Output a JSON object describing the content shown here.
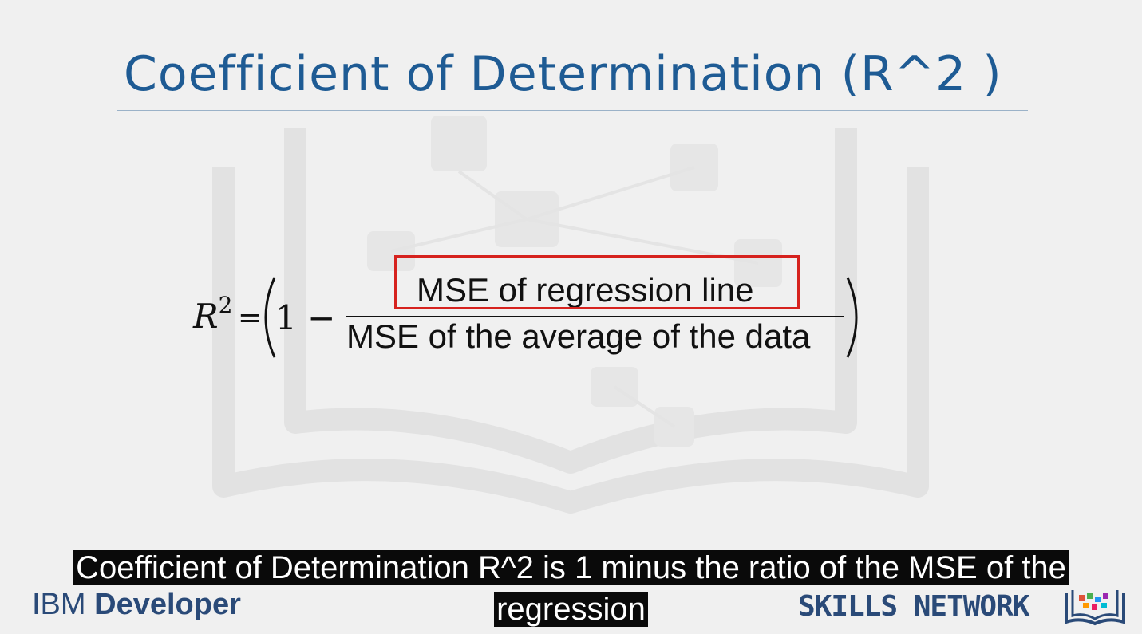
{
  "slide": {
    "title": "Coefficient of Determination (R^2 )",
    "formula": {
      "lhs_symbol": "R",
      "lhs_superscript": "2",
      "equals": "=",
      "one_minus": "1 −",
      "open_paren": "(",
      "close_paren": ")",
      "numerator": "MSE of regression line",
      "denominator": "MSE of the average of the data",
      "highlight_color": "#d6221e"
    },
    "title_color": "#1e5b94"
  },
  "footer": {
    "left_brand_light": "IBM ",
    "left_brand_bold": "Developer",
    "right_brand": "SKILLS NETWORK",
    "brand_color": "#2a4a78",
    "logo_icon": "skills-network-book-icon"
  },
  "captions": {
    "line1": "Coefficient of Determination R^2 is 1 minus the ratio of the MSE of the",
    "line2": "regression"
  }
}
